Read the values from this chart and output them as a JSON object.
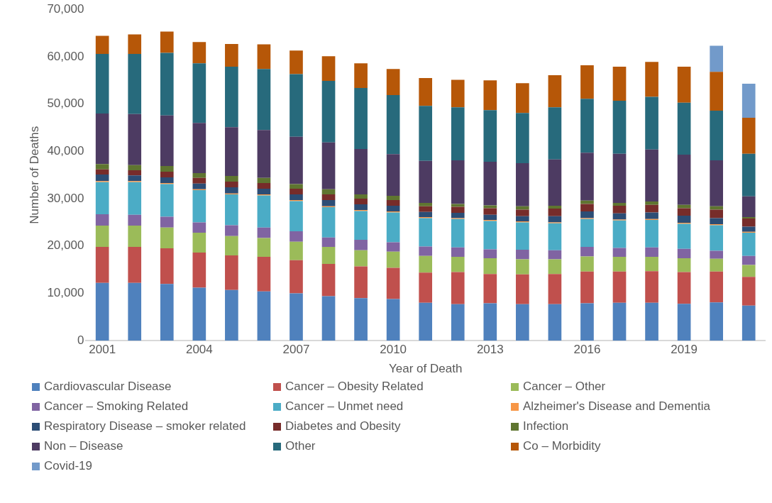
{
  "chart_data": {
    "type": "bar",
    "stacked": true,
    "xlabel": "Year of Death",
    "ylabel": "Number of Deaths",
    "categories": [
      "2001",
      null,
      null,
      "2004",
      null,
      null,
      "2007",
      null,
      null,
      "2010",
      null,
      null,
      "2013",
      null,
      null,
      "2016",
      null,
      null,
      "2019",
      null,
      null
    ],
    "ylim": [
      0,
      70000
    ],
    "yticks": [
      {
        "value": 0,
        "label": "0"
      },
      {
        "value": 10000,
        "label": "10,000"
      },
      {
        "value": 20000,
        "label": "20,000"
      },
      {
        "value": 30000,
        "label": "30,000"
      },
      {
        "value": 40000,
        "label": "40,000"
      },
      {
        "value": 50000,
        "label": "50,000"
      },
      {
        "value": 60000,
        "label": "60,000"
      },
      {
        "value": 70000,
        "label": "70,000"
      }
    ],
    "grid": false,
    "legend": "bottom",
    "series": [
      {
        "name": "Cardiovascular Disease",
        "color": "#4f81bd",
        "values": [
          12200,
          12200,
          12000,
          11200,
          10700,
          10400,
          10000,
          9400,
          9000,
          8800,
          8000,
          7700,
          7900,
          7700,
          7700,
          7900,
          8000,
          8000,
          7800,
          8100,
          7400
        ]
      },
      {
        "name": "Cancer – Obesity Related",
        "color": "#c0504d",
        "values": [
          7600,
          7600,
          7500,
          7400,
          7300,
          7300,
          7000,
          6800,
          6700,
          6600,
          6400,
          6800,
          6200,
          6300,
          6400,
          6700,
          6600,
          6700,
          6700,
          6500,
          6100
        ]
      },
      {
        "name": "Cancer – Other",
        "color": "#9bbb59",
        "values": [
          4500,
          4500,
          4400,
          4200,
          4100,
          4000,
          3900,
          3600,
          3400,
          3400,
          3500,
          3200,
          3300,
          3200,
          3100,
          3200,
          3100,
          3000,
          2900,
          2700,
          2500
        ]
      },
      {
        "name": "Cancer – Smoking Related",
        "color": "#8064a2",
        "values": [
          2400,
          2300,
          2300,
          2200,
          2300,
          2200,
          2200,
          2000,
          2200,
          2000,
          2000,
          2000,
          1900,
          2000,
          1900,
          2000,
          1900,
          2000,
          2000,
          1700,
          1900
        ]
      },
      {
        "name": "Cancer – Unmet need",
        "color": "#4bacc6",
        "values": [
          6800,
          6900,
          6900,
          6800,
          6500,
          6800,
          6400,
          6400,
          6100,
          6300,
          6000,
          6000,
          6000,
          5800,
          5700,
          5900,
          5800,
          5800,
          5300,
          5400,
          4900
        ]
      },
      {
        "name": "Alzheimer's Disease and Dementia",
        "color": "#f79646",
        "values": [
          200,
          200,
          200,
          200,
          200,
          200,
          200,
          200,
          200,
          200,
          200,
          200,
          200,
          200,
          200,
          200,
          200,
          200,
          200,
          200,
          200
        ]
      },
      {
        "name": "Respiratory Disease – smoker related",
        "color": "#2c4d75",
        "values": [
          1400,
          1200,
          1200,
          1200,
          1300,
          1200,
          1200,
          1300,
          1200,
          1200,
          1100,
          1100,
          1100,
          1100,
          1300,
          1400,
          1300,
          1400,
          1500,
          1300,
          1100
        ]
      },
      {
        "name": "Diabetes and Obesity",
        "color": "#772c2a",
        "values": [
          1100,
          1100,
          1200,
          1200,
          1200,
          1200,
          1200,
          1200,
          1200,
          1200,
          1200,
          1300,
          1400,
          1400,
          1600,
          1600,
          1600,
          1600,
          1600,
          1800,
          1700
        ]
      },
      {
        "name": "Infection",
        "color": "#5f7530",
        "values": [
          1100,
          1100,
          1200,
          1000,
          1200,
          1100,
          1000,
          1100,
          900,
          900,
          700,
          600,
          600,
          700,
          600,
          700,
          600,
          700,
          700,
          700,
          300
        ]
      },
      {
        "name": "Non – Disease",
        "color": "#4d3b62",
        "values": [
          10700,
          10800,
          10700,
          10600,
          10300,
          10100,
          10000,
          9900,
          9600,
          8800,
          8900,
          9200,
          9200,
          9100,
          9800,
          10100,
          10400,
          11000,
          10600,
          9700,
          4400
        ]
      },
      {
        "name": "Other",
        "color": "#276a7c",
        "values": [
          12600,
          12700,
          13200,
          12600,
          12800,
          12900,
          13200,
          13000,
          12900,
          12500,
          11600,
          11200,
          10900,
          10600,
          11000,
          11400,
          11200,
          11100,
          11000,
          10500,
          9000
        ]
      },
      {
        "name": "Co – Morbidity",
        "color": "#b65708",
        "values": [
          3800,
          4100,
          4500,
          4500,
          4800,
          5200,
          5000,
          5200,
          5200,
          5500,
          5900,
          5800,
          6300,
          6300,
          6800,
          7100,
          7200,
          7400,
          7600,
          8200,
          7600
        ]
      },
      {
        "name": "Covid-19",
        "color": "#729aca",
        "values": [
          null,
          null,
          null,
          null,
          null,
          null,
          null,
          null,
          null,
          null,
          null,
          null,
          null,
          null,
          null,
          null,
          null,
          null,
          null,
          5500,
          7200
        ]
      }
    ]
  }
}
